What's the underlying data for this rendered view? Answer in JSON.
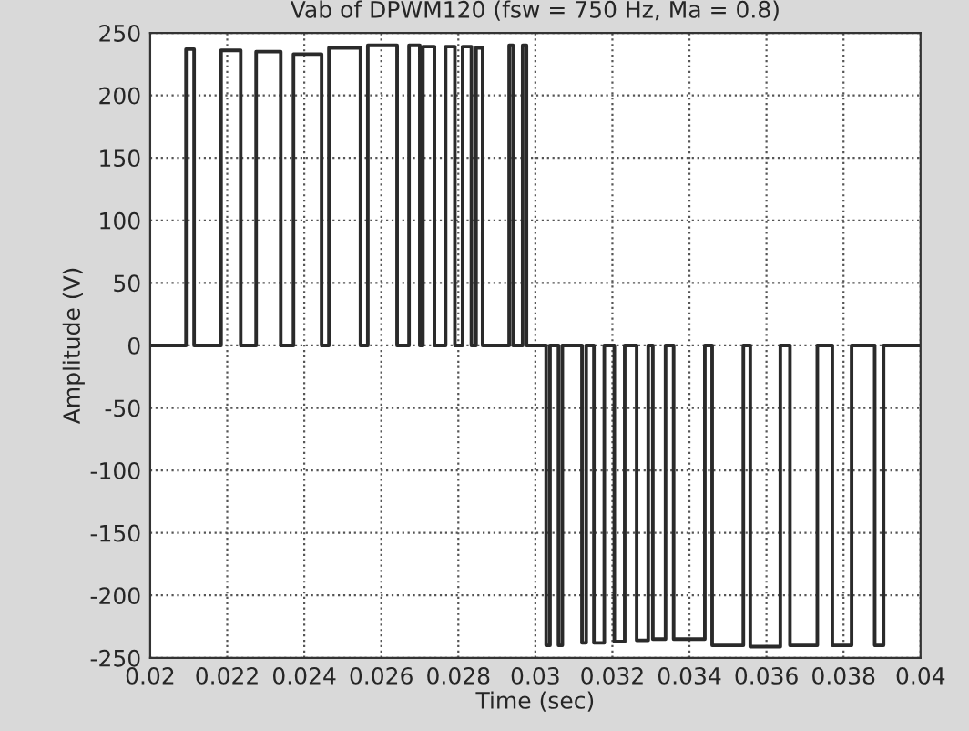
{
  "chart_data": {
    "type": "line",
    "title": "Vab of DPWM120 (fsw = 750 Hz, Ma = 0.8)",
    "xlabel": "Time (sec)",
    "ylabel": "Amplitude (V)",
    "xlim": [
      0.02,
      0.04
    ],
    "xticks": [
      0.02,
      0.022,
      0.024,
      0.026,
      0.028,
      0.03,
      0.032,
      0.034,
      0.036,
      0.038,
      0.04
    ],
    "ylim": [
      -250,
      250
    ],
    "yticks": [
      -250,
      -200,
      -150,
      -100,
      -50,
      0,
      50,
      100,
      150,
      200,
      250
    ],
    "grid": true,
    "marker": "none",
    "line_style": "solid",
    "series": [
      {
        "color": "#2a2a2a",
        "x": [
          0.02,
          0.02093,
          0.02093,
          0.02114,
          0.02114,
          0.02184,
          0.02184,
          0.02235,
          0.02235,
          0.02275,
          0.02275,
          0.02339,
          0.02339,
          0.02372,
          0.02372,
          0.02445,
          0.02445,
          0.02464,
          0.02464,
          0.02546,
          0.02546,
          0.02565,
          0.02565,
          0.02641,
          0.02641,
          0.02672,
          0.02672,
          0.027,
          0.027,
          0.02708,
          0.02708,
          0.02738,
          0.02738,
          0.02767,
          0.02767,
          0.02791,
          0.02791,
          0.02811,
          0.02811,
          0.02834,
          0.02834,
          0.02846,
          0.02846,
          0.02863,
          0.02863,
          0.02932,
          0.02932,
          0.02942,
          0.02942,
          0.02967,
          0.02967,
          0.02977,
          0.02977,
          0.03028,
          0.03028,
          0.03038,
          0.03038,
          0.0306,
          0.0306,
          0.0307,
          0.0307,
          0.03121,
          0.03121,
          0.03132,
          0.03132,
          0.03152,
          0.03152,
          0.03179,
          0.03179,
          0.03205,
          0.03205,
          0.03232,
          0.03232,
          0.03263,
          0.03263,
          0.03293,
          0.03293,
          0.03305,
          0.03305,
          0.03338,
          0.03338,
          0.03359,
          0.03359,
          0.0344,
          0.0344,
          0.03459,
          0.03459,
          0.0354,
          0.0354,
          0.03558,
          0.03558,
          0.03636,
          0.03636,
          0.03661,
          0.03661,
          0.03732,
          0.03732,
          0.03771,
          0.03771,
          0.03821,
          0.03821,
          0.03881,
          0.03881,
          0.03904,
          0.03904,
          0.04
        ],
        "values": [
          0,
          0,
          237,
          237,
          0,
          0,
          236,
          236,
          0,
          0,
          235,
          235,
          0,
          0,
          233,
          233,
          0,
          0,
          238,
          238,
          0,
          0,
          240,
          240,
          0,
          0,
          240,
          240,
          0,
          0,
          239,
          239,
          0,
          0,
          239,
          239,
          0,
          0,
          239,
          239,
          0,
          0,
          238,
          238,
          0,
          0,
          240,
          240,
          0,
          0,
          240,
          240,
          0,
          0,
          -240,
          -240,
          0,
          0,
          -240,
          -240,
          0,
          0,
          -238,
          -238,
          0,
          0,
          -238,
          -238,
          0,
          0,
          -237,
          -237,
          0,
          0,
          -236,
          -236,
          0,
          0,
          -235,
          -235,
          0,
          0,
          -235,
          -235,
          0,
          0,
          -240,
          -240,
          0,
          0,
          -241,
          -241,
          0,
          0,
          -240,
          -240,
          0,
          0,
          -240,
          -240,
          0,
          0,
          -240,
          -240,
          0,
          0
        ]
      }
    ]
  }
}
